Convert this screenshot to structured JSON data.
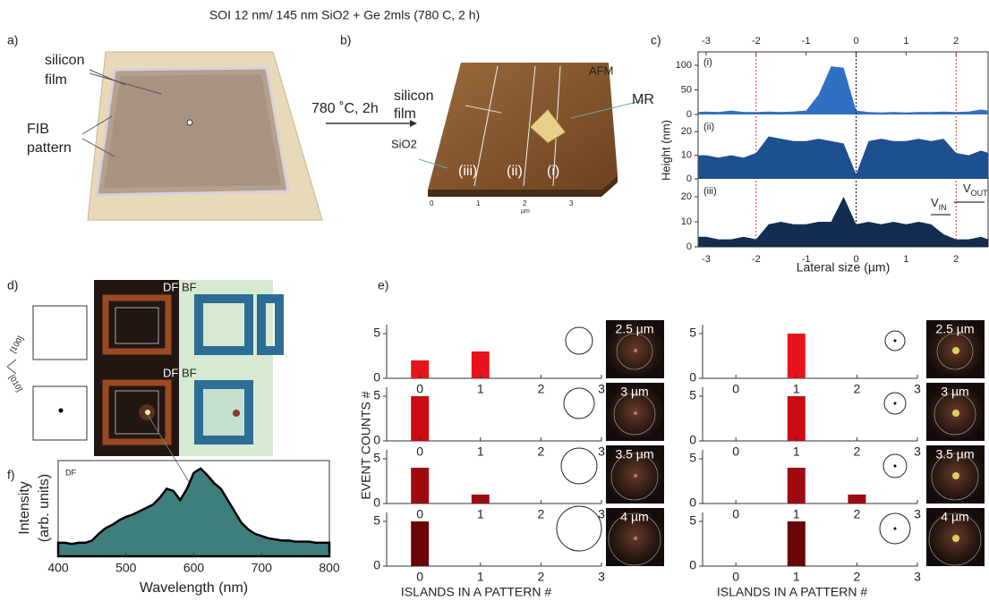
{
  "title": "SOI 12 nm/ 145 nm SiO2 + Ge 2mls (780 C, 2 h)",
  "panels": {
    "a": {
      "label": "a)",
      "film": [
        "silicon",
        "film"
      ],
      "pattern": [
        "FIB",
        "pattern"
      ]
    },
    "b": {
      "label": "b)",
      "arrow": "780 ˚C, 2h",
      "film": [
        "silicon",
        "film"
      ],
      "sio2": "SiO2",
      "afm": "AFM",
      "mr": "MR",
      "lines": [
        "(iii)",
        "(ii)",
        "(i)"
      ],
      "afm_ticks": [
        "0",
        "1",
        "2",
        "3"
      ],
      "afm_unit": "µm"
    },
    "c": {
      "label": "c)"
    },
    "d": {
      "label": "d)",
      "top": [
        "DF",
        "BF"
      ],
      "bottom": [
        "DF",
        "BF"
      ],
      "directions": [
        "[100]",
        "[010]"
      ]
    },
    "e": {
      "label": "e)"
    },
    "f": {
      "label": "f)"
    }
  },
  "chart_data": [
    {
      "type": "area",
      "annotation": "(i)",
      "color": "#2f6fc4",
      "xlim": [
        -3.16,
        2.64
      ],
      "ylim": [
        0,
        120
      ],
      "yticks": [
        0,
        50,
        100
      ],
      "xticks": [
        -3,
        -2,
        -1,
        0,
        1,
        2
      ],
      "vlines": [
        -2,
        0,
        2
      ],
      "x": [
        -3.15,
        -3,
        -2.75,
        -2.5,
        -2.25,
        -2,
        -1.75,
        -1.5,
        -1.25,
        -1,
        -0.75,
        -0.5,
        -0.25,
        0,
        0.25,
        0.5,
        0.75,
        1,
        1.25,
        1.5,
        1.75,
        2,
        2.25,
        2.5,
        2.64
      ],
      "values": [
        5,
        6,
        5,
        8,
        5,
        5,
        6,
        5,
        6,
        8,
        40,
        98,
        95,
        8,
        5,
        4,
        5,
        4,
        5,
        5,
        6,
        5,
        6,
        10,
        8
      ]
    },
    {
      "type": "area",
      "annotation": "(ii)",
      "color": "#1e4f8f",
      "ylabel": "Height (nm)",
      "xlim": [
        -3.16,
        2.64
      ],
      "ylim": [
        0,
        25
      ],
      "yticks": [
        0,
        10,
        20
      ],
      "x": [
        -3.15,
        -3,
        -2.75,
        -2.5,
        -2.25,
        -2,
        -1.75,
        -1.5,
        -1.25,
        -1,
        -0.75,
        -0.5,
        -0.25,
        0,
        0.25,
        0.5,
        0.75,
        1,
        1.25,
        1.5,
        1.75,
        2,
        2.25,
        2.5,
        2.64
      ],
      "values": [
        10,
        10,
        9,
        10,
        9,
        11,
        18,
        17,
        16,
        16,
        17,
        16,
        15,
        2,
        16,
        17,
        16,
        16,
        17,
        16,
        17,
        11,
        10,
        12,
        11
      ]
    },
    {
      "type": "area",
      "annotation": "(iii)",
      "color": "#132c52",
      "xlabel": "Lateral size (µm)",
      "xlim": [
        -3.16,
        2.64
      ],
      "ylim": [
        0,
        25
      ],
      "yticks": [
        0,
        10,
        20
      ],
      "xticks": [
        -3,
        -2,
        -1,
        0,
        1,
        2
      ],
      "annotations": [
        {
          "main": "V",
          "sub": "IN"
        },
        {
          "main": "V",
          "sub": "OUT"
        }
      ],
      "x": [
        -3.15,
        -3,
        -2.75,
        -2.5,
        -2.25,
        -2,
        -1.75,
        -1.5,
        -1.25,
        -1,
        -0.75,
        -0.5,
        -0.25,
        0,
        0.25,
        0.5,
        0.75,
        1,
        1.25,
        1.5,
        1.75,
        2,
        2.25,
        2.5,
        2.64
      ],
      "values": [
        4,
        4,
        3,
        3,
        4,
        3,
        9,
        10,
        9,
        9,
        10,
        10,
        20,
        9,
        10,
        9,
        10,
        9,
        10,
        9,
        5,
        3,
        3,
        4,
        3
      ]
    },
    {
      "type": "area",
      "annotation": "DF",
      "color": "#3f7f7b",
      "ylabel": [
        "Intensity",
        "(arb. units)"
      ],
      "xlabel": "Wavelength (nm)",
      "xlim": [
        400,
        800
      ],
      "ylim": [
        0,
        0.85
      ],
      "xticks": [
        400,
        500,
        600,
        700,
        800
      ],
      "x": [
        400,
        410,
        420,
        430,
        440,
        450,
        460,
        470,
        480,
        490,
        500,
        510,
        520,
        530,
        540,
        550,
        560,
        570,
        580,
        590,
        600,
        610,
        620,
        630,
        640,
        650,
        660,
        670,
        680,
        690,
        700,
        710,
        720,
        730,
        740,
        750,
        760,
        770,
        780,
        790,
        800
      ],
      "values": [
        0.12,
        0.12,
        0.11,
        0.12,
        0.12,
        0.14,
        0.2,
        0.25,
        0.28,
        0.32,
        0.35,
        0.37,
        0.4,
        0.43,
        0.46,
        0.52,
        0.6,
        0.58,
        0.5,
        0.6,
        0.74,
        0.78,
        0.72,
        0.65,
        0.6,
        0.5,
        0.4,
        0.3,
        0.24,
        0.2,
        0.18,
        0.16,
        0.15,
        0.14,
        0.14,
        0.13,
        0.13,
        0.13,
        0.12,
        0.12,
        0.12
      ]
    },
    {
      "type": "bar",
      "annotation": "2.5 µm",
      "ylabel": "EVENT COUNTS #",
      "color": "#e8141c",
      "x": [
        0,
        1,
        2
      ],
      "values": [
        2,
        3,
        0
      ],
      "xlim": [
        -0.55,
        3
      ],
      "xticks": [
        0,
        1,
        2,
        3
      ],
      "ylim": [
        0,
        6
      ],
      "yticks": [
        0,
        5
      ]
    },
    {
      "type": "bar",
      "annotation": "3 µm",
      "color": "#c80c12",
      "x": [
        0,
        1,
        2
      ],
      "values": [
        5,
        0,
        0
      ],
      "xlim": [
        -0.55,
        3
      ],
      "xticks": [
        0,
        1,
        2,
        3
      ],
      "ylim": [
        0,
        6
      ],
      "yticks": [
        0,
        5
      ]
    },
    {
      "type": "bar",
      "annotation": "3.5 µm",
      "color": "#9e0a10",
      "x": [
        0,
        1,
        2
      ],
      "values": [
        4,
        1,
        0
      ],
      "xlim": [
        -0.55,
        3
      ],
      "xticks": [
        0,
        1,
        2,
        3
      ],
      "ylim": [
        0,
        6
      ],
      "yticks": [
        0,
        5
      ]
    },
    {
      "type": "bar",
      "annotation": "4 µm",
      "color": "#6a0507",
      "xlabel": "ISLANDS IN A PATTERN #",
      "x": [
        0,
        1,
        2
      ],
      "values": [
        5,
        0,
        0
      ],
      "xlim": [
        -0.55,
        3
      ],
      "xticks": [
        0,
        1,
        2,
        3
      ],
      "ylim": [
        0,
        6
      ],
      "yticks": [
        0,
        5
      ]
    },
    {
      "type": "bar",
      "annotation": "2.5 µm",
      "color": "#e8141c",
      "x": [
        0,
        1,
        2
      ],
      "values": [
        0,
        5,
        0
      ],
      "xlim": [
        -0.55,
        3
      ],
      "xticks": [
        0,
        1,
        2,
        3
      ],
      "ylim": [
        0,
        6
      ],
      "yticks": [
        0,
        5
      ]
    },
    {
      "type": "bar",
      "annotation": "3 µm",
      "color": "#c80c12",
      "x": [
        0,
        1,
        2
      ],
      "values": [
        0,
        5,
        0
      ],
      "xlim": [
        -0.55,
        3
      ],
      "xticks": [
        0,
        1,
        2,
        3
      ],
      "ylim": [
        0,
        6
      ],
      "yticks": [
        0,
        5
      ]
    },
    {
      "type": "bar",
      "annotation": "3.5 µm",
      "color": "#9e0a10",
      "x": [
        0,
        1,
        2
      ],
      "values": [
        0,
        4,
        1
      ],
      "xlim": [
        -0.55,
        3
      ],
      "xticks": [
        0,
        1,
        2,
        3
      ],
      "ylim": [
        0,
        6
      ],
      "yticks": [
        0,
        5
      ]
    },
    {
      "type": "bar",
      "annotation": "4 µm",
      "color": "#6a0507",
      "xlabel": "ISLANDS IN A PATTERN #",
      "x": [
        0,
        1,
        2
      ],
      "values": [
        0,
        5,
        0
      ],
      "xlim": [
        -0.55,
        3
      ],
      "xticks": [
        0,
        1,
        2,
        3
      ],
      "ylim": [
        0,
        6
      ],
      "yticks": [
        0,
        5
      ]
    }
  ]
}
